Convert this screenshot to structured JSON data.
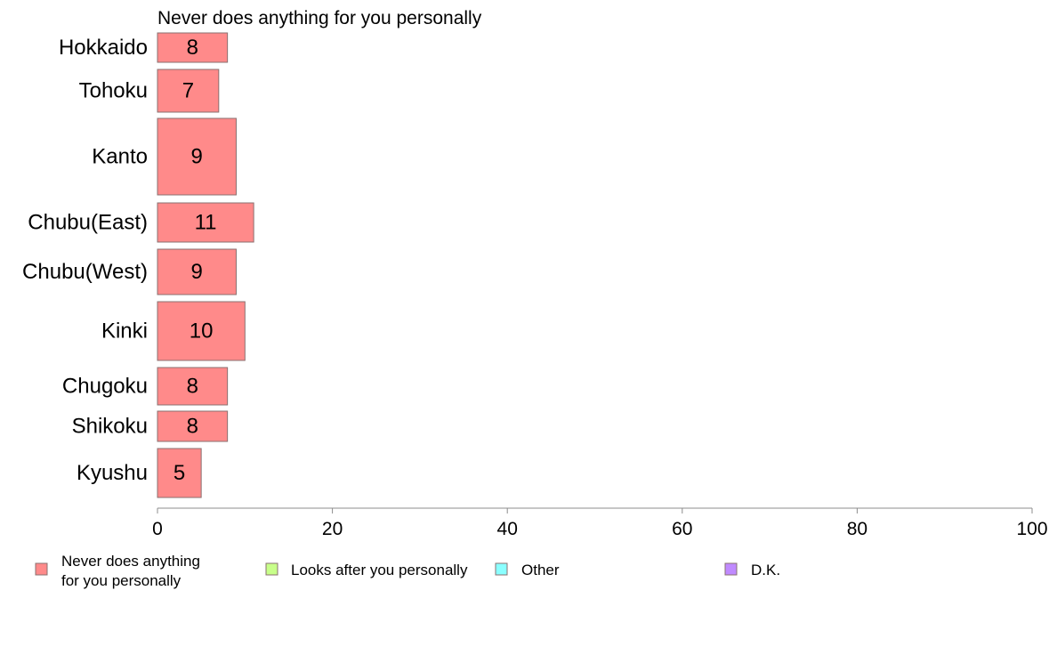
{
  "chart_data": {
    "type": "bar",
    "orientation": "horizontal",
    "title": "Never does anything for you personally",
    "categories": [
      "Hokkaido",
      "Tohoku",
      "Kanto",
      "Chubu(East)",
      "Chubu(West)",
      "Kinki",
      "Chugoku",
      "Shikoku",
      "Kyushu"
    ],
    "series": [
      {
        "name": "Never does anything for you personally",
        "values": [
          8,
          7,
          9,
          11,
          9,
          10,
          8,
          8,
          5
        ],
        "labels": [
          "8",
          "7",
          "9",
          "11",
          "9",
          "10",
          "8",
          "8",
          "5"
        ],
        "color": "#ff8a8a"
      }
    ],
    "xlim": [
      0,
      100
    ],
    "xticks": [
      0,
      20,
      40,
      60,
      80,
      100
    ],
    "xtick_labels": [
      "0",
      "20",
      "40",
      "60",
      "80",
      "100"
    ],
    "grid": false,
    "legend_position": "bottom",
    "legend": [
      {
        "label_lines": [
          "Never does anything",
          "for you personally"
        ],
        "color": "#ff8a8a"
      },
      {
        "label_lines": [
          "Looks after you personally"
        ],
        "color": "#c8ff8a"
      },
      {
        "label_lines": [
          "Other"
        ],
        "color": "#8affff"
      },
      {
        "label_lines": [
          "D.K."
        ],
        "color": "#c08aff"
      }
    ]
  }
}
